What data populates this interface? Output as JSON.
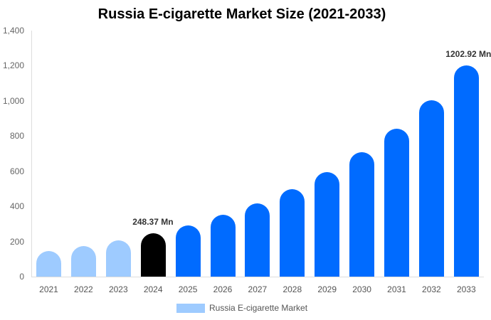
{
  "chart_data": {
    "type": "bar",
    "title": "Russia E-cigarette Market Size (2021-2033)",
    "xlabel": "",
    "ylabel": "",
    "ylim": [
      0,
      1400
    ],
    "yticks": [
      "0",
      "200",
      "400",
      "600",
      "800",
      "1,000",
      "1,200",
      "1,400"
    ],
    "categories": [
      "2021",
      "2022",
      "2023",
      "2024",
      "2025",
      "2026",
      "2027",
      "2028",
      "2029",
      "2030",
      "2031",
      "2032",
      "2033"
    ],
    "series": [
      {
        "name": "Russia E-cigarette Market",
        "values": [
          146,
          174,
          206,
          248.37,
          292,
          352,
          417,
          498,
          595,
          708,
          842,
          1004,
          1202.92
        ]
      }
    ],
    "bar_colors": [
      "#9ecbff",
      "#9ecbff",
      "#9ecbff",
      "#000000",
      "#006bff",
      "#006bff",
      "#006bff",
      "#006bff",
      "#006bff",
      "#006bff",
      "#006bff",
      "#006bff",
      "#006bff"
    ],
    "annotations": [
      {
        "category": "2024",
        "text": "248.37 Mn"
      },
      {
        "category": "2033",
        "text": "1202.92 Mn"
      }
    ],
    "grid": false,
    "legend_position": "bottom"
  },
  "title": "Russia E-cigarette Market Size (2021-2033)",
  "legend": {
    "label": "Russia E-cigarette Market"
  }
}
